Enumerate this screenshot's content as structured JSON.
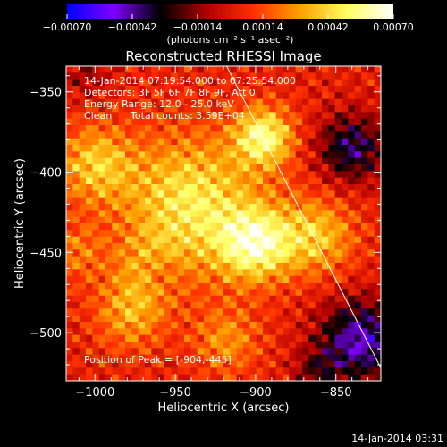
{
  "chart_data": {
    "type": "heatmap",
    "title": "Reconstructed RHESSI Image",
    "xlabel": "Heliocentric X (arcsec)",
    "ylabel": "Heliocentric Y (arcsec)",
    "xlim": [
      -1018,
      -822
    ],
    "ylim": [
      -530,
      -334
    ],
    "x_ticks": [
      -1000,
      -950,
      -900,
      -850
    ],
    "y_ticks": [
      -350,
      -400,
      -450,
      -500
    ],
    "x_tick_labels": [
      "−1000",
      "−950",
      "−900",
      "−850"
    ],
    "y_tick_labels": [
      "−350",
      "−400",
      "−450",
      "−500"
    ],
    "colorbar": {
      "range": [
        -0.0007,
        0.0007
      ],
      "ticks": [
        -0.0007,
        -0.00042,
        -0.00014,
        0.00014,
        0.00042,
        0.0007
      ],
      "tick_labels": [
        "−0.00070",
        "−0.00042",
        "−0.00014",
        "0.00014",
        "0.00042",
        "0.00070"
      ],
      "label": "(photons cm⁻² s⁻¹ asec⁻²)",
      "colors": [
        "#0000ff",
        "#8000ff",
        "#000000",
        "#b00000",
        "#ff3000",
        "#ffa000",
        "#ffff60",
        "#ffffff"
      ]
    },
    "limb_line": [
      [
        -918,
        -334
      ],
      [
        -822,
        -522
      ]
    ],
    "annotations": {
      "time_range": "14-Jan-2014 07:19:54.000 to 07:25:54.000",
      "detectors": "Detectors: 3F 5F 6F 7F 8F 9F, Att 0",
      "energy_range": "Energy Range: 12.0 - 25.0 keV",
      "method": "Clean",
      "total_counts": "Total counts: 3.59E+04",
      "peak_position": "Position of Peak = [-904,-445]"
    },
    "image_blobs": [
      {
        "x": -940,
        "y": -420,
        "amp": 0.00045,
        "sigma": 30
      },
      {
        "x": -900,
        "y": -445,
        "amp": 0.0005,
        "sigma": 16
      },
      {
        "x": -895,
        "y": -378,
        "amp": 0.0005,
        "sigma": 13
      },
      {
        "x": -1000,
        "y": -395,
        "amp": 0.00034,
        "sigma": 17
      },
      {
        "x": -862,
        "y": -440,
        "amp": 0.00034,
        "sigma": 17
      },
      {
        "x": -978,
        "y": -488,
        "amp": 0.00028,
        "sigma": 16
      },
      {
        "x": -918,
        "y": -505,
        "amp": 0.00024,
        "sigma": 15
      },
      {
        "x": -1012,
        "y": -450,
        "amp": 0.00018,
        "sigma": 13
      },
      {
        "x": -965,
        "y": -460,
        "amp": 0.00025,
        "sigma": 14
      },
      {
        "x": -840,
        "y": -385,
        "amp": -0.0004,
        "sigma": 15
      },
      {
        "x": -835,
        "y": -505,
        "amp": -0.0005,
        "sigma": 18
      },
      {
        "x": -1005,
        "y": -340,
        "amp": -0.00015,
        "sigma": 10
      },
      {
        "x": -960,
        "y": -462,
        "amp": -0.0002,
        "sigma": 10
      },
      {
        "x": -862,
        "y": -525,
        "amp": -0.0002,
        "sigma": 10
      }
    ]
  },
  "footer": {
    "timestamp": "14-Jan-2014 03:31"
  }
}
